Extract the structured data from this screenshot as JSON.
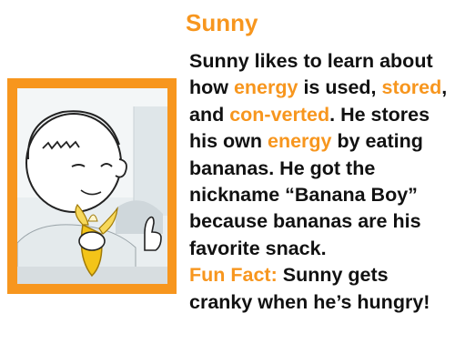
{
  "profile": {
    "name": "Sunny",
    "bio": {
      "t1": "Sunny likes to learn about how ",
      "energy1": "energy",
      "t2": " is used, ",
      "stored": "stored",
      "t3": ", and ",
      "converted": "con-verted",
      "t4": ". He stores his own ",
      "energy2": "energy",
      "t5": " by eating bananas. He got the nickname “Banana Boy” because bananas are his favorite snack."
    },
    "fun_fact": {
      "label": "Fun Fact:",
      "text": " Sunny gets cranky when he’s hungry!"
    }
  },
  "colors": {
    "accent": "#f7961e",
    "text": "#111111"
  },
  "image": {
    "subject": "boy-eating-banana-illustration"
  }
}
